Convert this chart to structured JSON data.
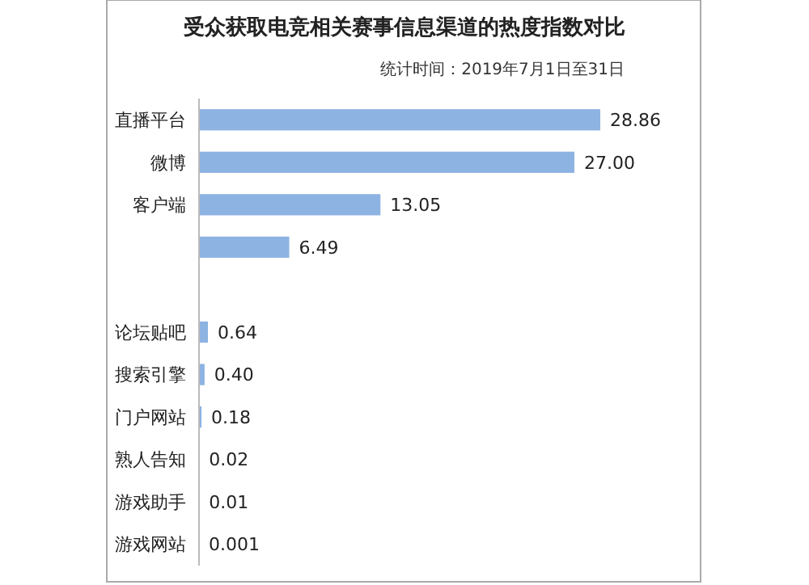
{
  "chart_data": {
    "type": "bar",
    "orientation": "horizontal",
    "title": "受众获取电竞相关赛事信息渠道的热度指数对比",
    "subtitle": "统计时间：2019年7月1日至31日",
    "categories": [
      "直播平台",
      "微博",
      "客户端",
      null,
      null,
      "论坛贴吧",
      "搜索引擎",
      "门户网站",
      "熟人告知",
      "游戏助手",
      "游戏网站"
    ],
    "values": [
      28.86,
      27.0,
      13.05,
      6.49,
      null,
      0.64,
      0.4,
      0.18,
      0.02,
      0.01,
      0.001
    ],
    "value_labels": [
      "28.86",
      "27.00",
      "13.05",
      "6.49",
      null,
      "0.64",
      "0.40",
      "0.18",
      "0.02",
      "0.01",
      "0.001"
    ],
    "color": "#8db3e2"
  }
}
